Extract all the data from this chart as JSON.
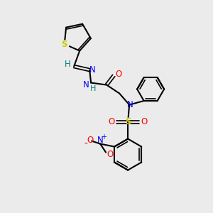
{
  "bg_color": "#ebebeb",
  "atom_colors": {
    "C": "#000000",
    "N": "#0000ff",
    "O": "#ff0000",
    "S_thio": "#cccc00",
    "S_sulfo": "#cccc00",
    "H": "#008080"
  },
  "bond_color": "#000000",
  "figsize": [
    3.0,
    3.0
  ],
  "dpi": 100
}
